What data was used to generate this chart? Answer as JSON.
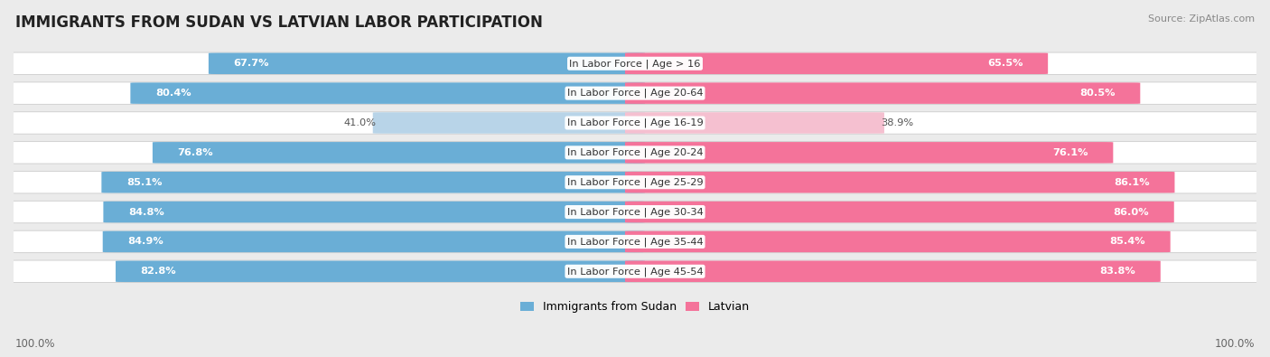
{
  "title": "IMMIGRANTS FROM SUDAN VS LATVIAN LABOR PARTICIPATION",
  "source": "Source: ZipAtlas.com",
  "categories": [
    "In Labor Force | Age > 16",
    "In Labor Force | Age 20-64",
    "In Labor Force | Age 16-19",
    "In Labor Force | Age 20-24",
    "In Labor Force | Age 25-29",
    "In Labor Force | Age 30-34",
    "In Labor Force | Age 35-44",
    "In Labor Force | Age 45-54"
  ],
  "sudan_values": [
    67.7,
    80.4,
    41.0,
    76.8,
    85.1,
    84.8,
    84.9,
    82.8
  ],
  "latvian_values": [
    65.5,
    80.5,
    38.9,
    76.1,
    86.1,
    86.0,
    85.4,
    83.8
  ],
  "sudan_color": "#6AAED6",
  "sudan_light_color": "#B8D4E8",
  "latvian_color": "#F4739A",
  "latvian_light_color": "#F5C0D0",
  "bg_color": "#EBEBEB",
  "row_bg_color": "#FFFFFF",
  "row_gap_color": "#DADADA",
  "bar_height": 0.72,
  "x_left_label": "100.0%",
  "x_right_label": "100.0%",
  "legend_sudan": "Immigrants from Sudan",
  "legend_latvian": "Latvian",
  "title_fontsize": 12,
  "source_fontsize": 8,
  "label_fontsize": 8.2,
  "value_fontsize": 8.2,
  "max_val": 100.0
}
